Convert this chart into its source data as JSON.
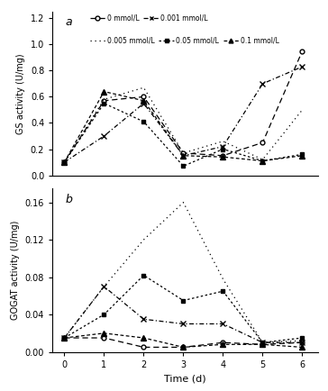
{
  "time": [
    0,
    1,
    2,
    3,
    4,
    5,
    6
  ],
  "gs": {
    "0mmol": [
      0.1,
      0.57,
      0.6,
      0.17,
      0.15,
      0.25,
      0.95
    ],
    "0.001mmol": [
      0.1,
      0.3,
      0.55,
      0.15,
      0.22,
      0.7,
      0.83
    ],
    "0.005mmol": [
      0.1,
      0.58,
      0.67,
      0.17,
      0.26,
      0.12,
      0.5
    ],
    "0.05mmol": [
      0.1,
      0.55,
      0.41,
      0.07,
      0.2,
      0.11,
      0.16
    ],
    "0.1mmol": [
      0.1,
      0.64,
      0.57,
      0.15,
      0.14,
      0.11,
      0.15
    ]
  },
  "gogat": {
    "0mmol": [
      0.015,
      0.015,
      0.005,
      0.005,
      0.01,
      0.008,
      0.01
    ],
    "0.001mmol": [
      0.015,
      0.07,
      0.035,
      0.03,
      0.03,
      0.01,
      0.01
    ],
    "0.005mmol": [
      0.015,
      0.07,
      0.12,
      0.16,
      0.078,
      0.01,
      0.012
    ],
    "0.05mmol": [
      0.015,
      0.04,
      0.082,
      0.055,
      0.065,
      0.01,
      0.015
    ],
    "0.1mmol": [
      0.015,
      0.02,
      0.015,
      0.005,
      0.008,
      0.008,
      0.005
    ]
  },
  "legend_labels": [
    "0 mmol/L",
    "0.001 mmol/L",
    "0.005 mmol/L",
    "0.05 mmol/L",
    "0.1 mmol/L"
  ],
  "gs_ylabel": "GS activity (U/mg)",
  "gogat_ylabel": "GOGAT activity (U/mg)",
  "xlabel": "Time (d)",
  "panel_a": "a",
  "panel_b": "b",
  "gs_ylim": [
    0.0,
    1.25
  ],
  "gogat_ylim": [
    0.0,
    0.175
  ],
  "gs_yticks": [
    0.0,
    0.2,
    0.4,
    0.6,
    0.8,
    1.0,
    1.2
  ],
  "gogat_yticks": [
    0.0,
    0.04,
    0.08,
    0.12,
    0.16
  ]
}
